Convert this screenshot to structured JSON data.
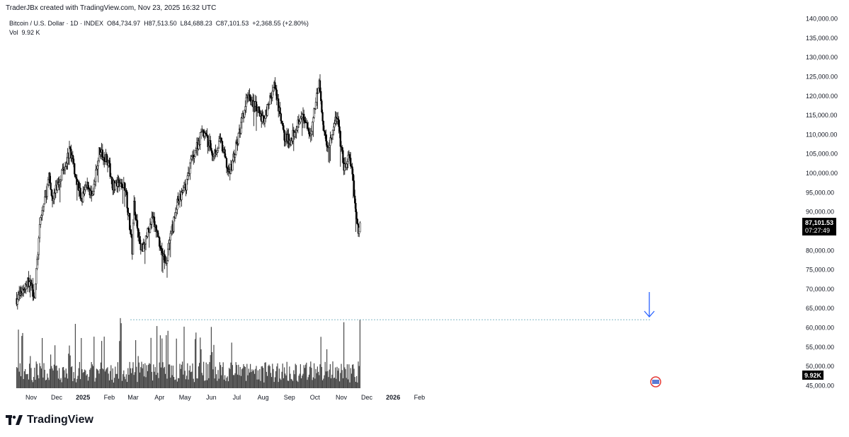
{
  "header": {
    "credit": "TraderJBx created with TradingView.com, Nov 23, 2025 16:32 UTC",
    "symbol": "Bitcoin / U.S. Dollar · 1D · INDEX",
    "open": "O84,734.97",
    "high": "H87,513.50",
    "low": "L84,688.23",
    "close": "C87,101.53",
    "change": "+2,368.55 (+2.80%)",
    "vol_label": "Vol",
    "vol_value": "9.92 K"
  },
  "colors": {
    "candle_body": "#000000",
    "candle_up": "#ffffff",
    "volume_bar": "#4a4a4a",
    "dashed_line": "#5aa0b4",
    "arrow": "#2962ff",
    "price_label_bg": "#000000",
    "price_label_fg": "#ffffff",
    "earnings_marker": "#e53935"
  },
  "price_label": {
    "value": "87,101.53",
    "countdown": "07:27:49"
  },
  "volume_label": "9.92K",
  "footer": {
    "brand": "TradingView"
  },
  "chart_data": {
    "type": "candlestick",
    "title": "Bitcoin / U.S. Dollar · 1D · INDEX",
    "y_axis": {
      "ticks": [
        "140,000.00",
        "135,000.00",
        "130,000.00",
        "125,000.00",
        "120,000.00",
        "115,000.00",
        "110,000.00",
        "105,000.00",
        "100,000.00",
        "95,000.00",
        "90,000.00",
        "85,000.00",
        "80,000.00",
        "75,000.00",
        "70,000.00",
        "65,000.00",
        "60,000.00",
        "55,000.00",
        "50,000.00",
        "45,000.00"
      ],
      "range": [
        45000,
        140000
      ]
    },
    "x_axis": {
      "ticks": [
        "Nov",
        "Dec",
        "2025",
        "Feb",
        "Mar",
        "Apr",
        "May",
        "Jun",
        "Jul",
        "Aug",
        "Sep",
        "Oct",
        "Nov",
        "Dec",
        "2026",
        "Feb"
      ]
    },
    "price_path": [
      [
        "2024-10-15",
        67500
      ],
      [
        "2024-10-29",
        72000
      ],
      [
        "2024-11-05",
        68500
      ],
      [
        "2024-11-12",
        88000
      ],
      [
        "2024-11-22",
        98500
      ],
      [
        "2024-11-26",
        93000
      ],
      [
        "2024-12-05",
        99000
      ],
      [
        "2024-12-17",
        106000
      ],
      [
        "2024-12-30",
        93000
      ],
      [
        "2025-01-07",
        97000
      ],
      [
        "2025-01-12",
        93000
      ],
      [
        "2025-01-20",
        105500
      ],
      [
        "2025-01-29",
        104000
      ],
      [
        "2025-02-05",
        97000
      ],
      [
        "2025-02-20",
        96500
      ],
      [
        "2025-02-28",
        80000
      ],
      [
        "2025-03-02",
        92000
      ],
      [
        "2025-03-10",
        80000
      ],
      [
        "2025-03-24",
        88000
      ],
      [
        "2025-03-31",
        83000
      ],
      [
        "2025-04-08",
        76500
      ],
      [
        "2025-04-15",
        84000
      ],
      [
        "2025-04-22",
        92000
      ],
      [
        "2025-05-01",
        96000
      ],
      [
        "2025-05-08",
        103000
      ],
      [
        "2025-05-22",
        111000
      ],
      [
        "2025-06-03",
        105000
      ],
      [
        "2025-06-12",
        108000
      ],
      [
        "2025-06-22",
        99500
      ],
      [
        "2025-07-01",
        107500
      ],
      [
        "2025-07-10",
        116000
      ],
      [
        "2025-07-14",
        120500
      ],
      [
        "2025-08-01",
        113500
      ],
      [
        "2025-08-14",
        122500
      ],
      [
        "2025-08-25",
        110000
      ],
      [
        "2025-09-01",
        108000
      ],
      [
        "2025-09-15",
        115500
      ],
      [
        "2025-09-25",
        109000
      ],
      [
        "2025-10-06",
        124500
      ],
      [
        "2025-10-10",
        112000
      ],
      [
        "2025-10-17",
        106500
      ],
      [
        "2025-10-27",
        115000
      ],
      [
        "2025-11-04",
        101000
      ],
      [
        "2025-11-11",
        104500
      ],
      [
        "2025-11-17",
        92500
      ],
      [
        "2025-11-21",
        84500
      ],
      [
        "2025-11-23",
        87101.53
      ]
    ],
    "last": {
      "open": 84734.97,
      "high": 87513.5,
      "low": 84688.23,
      "close": 87101.53,
      "change": 2368.55,
      "change_pct": 2.8
    },
    "volume": {
      "last": "9.92 K",
      "reference_dashed_level": 62000,
      "arrow_marks_last_bar": true
    }
  }
}
